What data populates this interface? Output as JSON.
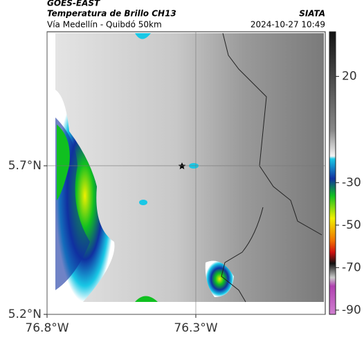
{
  "header": {
    "source": "GOES-EAST",
    "title": "Temperatura de Brillo CH13",
    "org": "SIATA",
    "route": "Vía Medellín - Quibdó 50km",
    "datetime": "2024-10-27 10:49"
  },
  "map": {
    "xlim": [
      -76.8,
      -75.865
    ],
    "ylim": [
      5.2,
      6.151
    ],
    "xticks": [
      {
        "value": -76.8,
        "label": "76.8°W"
      },
      {
        "value": -76.3,
        "label": "76.3°W"
      }
    ],
    "yticks": [
      {
        "value": 5.2,
        "label": "5.2°N"
      },
      {
        "value": 5.7,
        "label": "5.7°N"
      }
    ]
  },
  "colorbar": {
    "lim": [
      -92,
      41
    ],
    "ticks": [
      20,
      -30,
      -50,
      -70,
      -90
    ]
  }
}
